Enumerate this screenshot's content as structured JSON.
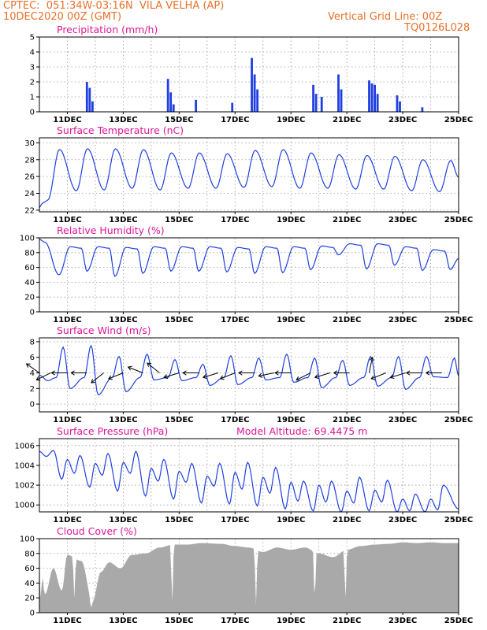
{
  "header": {
    "line1_left": "CPTEC:  051:34W-03:16N  VILA VELHA (AP)",
    "line2_left": "10DEC2020 00Z (GMT)",
    "line1_right": "Vertical Grid Line: 00Z",
    "line2_right": "TQ0126L028"
  },
  "colors": {
    "title": "#e0169a",
    "header": "#e8702a",
    "series": "#1f3fe0",
    "cloud": "#a9a9a9",
    "wind_vector": "#000000"
  },
  "x_ticks": [
    "11DEC",
    "13DEC",
    "15DEC",
    "17DEC",
    "19DEC",
    "21DEC",
    "23DEC",
    "25DEC"
  ],
  "chart_data": [
    {
      "type": "bar",
      "title": "Precipitation (mm/h)",
      "x_range_days": [
        10,
        25
      ],
      "ylim": [
        0,
        5
      ],
      "yticks": [
        "0",
        "1",
        "2",
        "3",
        "4",
        "5"
      ],
      "events": [
        {
          "day": 11.7,
          "value": 2.0
        },
        {
          "day": 11.8,
          "value": 1.6
        },
        {
          "day": 11.9,
          "value": 0.7
        },
        {
          "day": 14.6,
          "value": 2.2
        },
        {
          "day": 14.7,
          "value": 1.3
        },
        {
          "day": 14.8,
          "value": 0.5
        },
        {
          "day": 15.6,
          "value": 0.8
        },
        {
          "day": 16.9,
          "value": 0.6
        },
        {
          "day": 17.6,
          "value": 3.6
        },
        {
          "day": 17.7,
          "value": 2.5
        },
        {
          "day": 17.8,
          "value": 1.5
        },
        {
          "day": 19.8,
          "value": 1.8
        },
        {
          "day": 19.9,
          "value": 1.2
        },
        {
          "day": 20.1,
          "value": 1.0
        },
        {
          "day": 20.7,
          "value": 2.5
        },
        {
          "day": 20.8,
          "value": 1.5
        },
        {
          "day": 21.8,
          "value": 2.1
        },
        {
          "day": 21.9,
          "value": 1.9
        },
        {
          "day": 22.0,
          "value": 1.8
        },
        {
          "day": 22.1,
          "value": 1.2
        },
        {
          "day": 22.8,
          "value": 1.1
        },
        {
          "day": 22.9,
          "value": 0.7
        },
        {
          "day": 23.7,
          "value": 0.3
        }
      ]
    },
    {
      "type": "line",
      "title": "Surface Temperature (nC)",
      "ylim": [
        21.8,
        30.6
      ],
      "yticks": [
        "22",
        "24",
        "26",
        "28",
        "30"
      ],
      "start": {
        "day": 10.0,
        "value": 22.3
      },
      "ramp": [
        {
          "day": 10.1,
          "value": 22.8
        },
        {
          "day": 10.2,
          "value": 23.0
        },
        {
          "day": 10.3,
          "value": 23.2
        }
      ],
      "daily_max": [
        29.2,
        29.3,
        29.3,
        29.2,
        28.8,
        28.8,
        28.7,
        29.1,
        29.2,
        28.8,
        28.6,
        28.5,
        28.4,
        28.0,
        27.9
      ],
      "daily_min": [
        24.3,
        24.4,
        24.6,
        24.4,
        24.6,
        24.6,
        24.7,
        24.8,
        24.6,
        24.6,
        24.5,
        24.5,
        24.3,
        24.2,
        24.2
      ],
      "end": {
        "day": 25.0,
        "value": 25.9
      }
    },
    {
      "type": "line",
      "title": "Relative Humidity (%)",
      "ylim": [
        0,
        100
      ],
      "yticks": [
        "0",
        "20",
        "40",
        "60",
        "80",
        "100"
      ],
      "start": {
        "day": 10.0,
        "value": 98.0
      },
      "daily_min": [
        50,
        55,
        48,
        52,
        55,
        55,
        54,
        52,
        53,
        57,
        77,
        58,
        63,
        56,
        57
      ],
      "daily_max": [
        88,
        88,
        87,
        88,
        88,
        88,
        87,
        88,
        88,
        89,
        92,
        92,
        88,
        84,
        72
      ],
      "end": {
        "day": 25.0,
        "value": 72.0
      }
    },
    {
      "type": "line",
      "title": "Surface Wind (m/s)",
      "ylim": [
        -1,
        8.5
      ],
      "yticks": [
        "0",
        "2",
        "4",
        "6",
        "8"
      ],
      "start": {
        "day": 10.0,
        "value": 3.7
      },
      "daily_min": [
        2.0,
        1.2,
        1.6,
        3.1,
        3.0,
        2.4,
        2.5,
        3.1,
        2.8,
        2.1,
        2.4,
        2.3,
        1.9,
        3.5,
        3.2
      ],
      "daily_max": [
        7.3,
        7.5,
        6.1,
        6.4,
        5.7,
        5.1,
        6.2,
        5.9,
        6.4,
        5.9,
        5.6,
        6.1,
        6.1,
        6.1,
        5.9
      ],
      "end": {
        "day": 25.0,
        "value": 3.6
      },
      "vectors": [
        {
          "day": 10.0,
          "u": -1,
          "v": 0.7
        },
        {
          "day": 10.4,
          "u": -1,
          "v": -0.5
        },
        {
          "day": 11.0,
          "u": -1,
          "v": 0.0
        },
        {
          "day": 11.7,
          "u": -1,
          "v": 0.0
        },
        {
          "day": 12.3,
          "u": -1,
          "v": -0.8
        },
        {
          "day": 13.0,
          "u": -1,
          "v": -0.4
        },
        {
          "day": 13.7,
          "u": -1,
          "v": 0.4
        },
        {
          "day": 14.3,
          "u": -1,
          "v": 0.8
        },
        {
          "day": 15.0,
          "u": -1,
          "v": -0.3
        },
        {
          "day": 15.7,
          "u": -1,
          "v": 0.0
        },
        {
          "day": 16.4,
          "u": -1,
          "v": -0.3
        },
        {
          "day": 17.0,
          "u": -1,
          "v": -0.4
        },
        {
          "day": 17.7,
          "u": -1,
          "v": 0.0
        },
        {
          "day": 18.4,
          "u": -1,
          "v": -0.2
        },
        {
          "day": 19.0,
          "u": -1,
          "v": 0.0
        },
        {
          "day": 19.7,
          "u": -1,
          "v": -0.5
        },
        {
          "day": 20.4,
          "u": -1,
          "v": -0.3
        },
        {
          "day": 21.1,
          "u": -1,
          "v": 0.0
        },
        {
          "day": 21.8,
          "u": 0.2,
          "v": 1.0
        },
        {
          "day": 22.4,
          "u": -1,
          "v": -0.4
        },
        {
          "day": 23.1,
          "u": -1,
          "v": -0.3
        },
        {
          "day": 23.7,
          "u": -1,
          "v": 0.0
        },
        {
          "day": 24.4,
          "u": -1,
          "v": 0.0
        }
      ]
    },
    {
      "type": "line",
      "title": "Surface Pressure (hPa)",
      "annotation": "Model Altitude: 69.4475 m",
      "ylim": [
        999.3,
        1006.7
      ],
      "yticks": [
        "1000",
        "1002",
        "1004",
        "1006"
      ],
      "start": {
        "day": 10.0,
        "value": 1005.4
      },
      "peaks": [
        {
          "day": 10.5,
          "value": 1005.5
        },
        {
          "day": 11.0,
          "value": 1004.6
        },
        {
          "day": 11.45,
          "value": 1005.0
        },
        {
          "day": 12.0,
          "value": 1004.2
        },
        {
          "day": 12.45,
          "value": 1005.2
        },
        {
          "day": 13.0,
          "value": 1004.3
        },
        {
          "day": 13.45,
          "value": 1005.4
        },
        {
          "day": 14.0,
          "value": 1003.7
        },
        {
          "day": 14.45,
          "value": 1004.6
        },
        {
          "day": 15.0,
          "value": 1003.4
        },
        {
          "day": 15.45,
          "value": 1004.2
        },
        {
          "day": 16.0,
          "value": 1002.9
        },
        {
          "day": 16.45,
          "value": 1004.2
        },
        {
          "day": 17.0,
          "value": 1003.3
        },
        {
          "day": 17.45,
          "value": 1004.3
        },
        {
          "day": 18.0,
          "value": 1002.8
        },
        {
          "day": 18.45,
          "value": 1003.8
        },
        {
          "day": 19.0,
          "value": 1002.3
        },
        {
          "day": 19.45,
          "value": 1002.4
        },
        {
          "day": 20.0,
          "value": 1002.0
        },
        {
          "day": 20.45,
          "value": 1002.4
        },
        {
          "day": 21.0,
          "value": 1001.4
        },
        {
          "day": 21.45,
          "value": 1002.8
        },
        {
          "day": 22.0,
          "value": 1001.5
        },
        {
          "day": 22.45,
          "value": 1002.5
        },
        {
          "day": 23.0,
          "value": 1000.6
        },
        {
          "day": 23.45,
          "value": 1001.1
        },
        {
          "day": 24.0,
          "value": 1000.6
        },
        {
          "day": 24.45,
          "value": 1002.0
        }
      ],
      "troughs": [
        {
          "day": 10.25,
          "value": 1004.9
        },
        {
          "day": 10.8,
          "value": 1002.6
        },
        {
          "day": 11.25,
          "value": 1003.2
        },
        {
          "day": 11.8,
          "value": 1001.8
        },
        {
          "day": 12.25,
          "value": 1003.0
        },
        {
          "day": 12.8,
          "value": 1001.4
        },
        {
          "day": 13.25,
          "value": 1003.2
        },
        {
          "day": 13.8,
          "value": 1000.9
        },
        {
          "day": 14.25,
          "value": 1002.4
        },
        {
          "day": 14.8,
          "value": 1000.6
        },
        {
          "day": 15.25,
          "value": 1002.3
        },
        {
          "day": 15.8,
          "value": 1000.2
        },
        {
          "day": 16.25,
          "value": 1001.9
        },
        {
          "day": 16.8,
          "value": 1000.1
        },
        {
          "day": 17.25,
          "value": 1001.6
        },
        {
          "day": 17.8,
          "value": 999.9
        },
        {
          "day": 18.25,
          "value": 1001.2
        },
        {
          "day": 18.8,
          "value": 999.6
        },
        {
          "day": 19.25,
          "value": 1000.4
        },
        {
          "day": 19.8,
          "value": 999.4
        },
        {
          "day": 20.25,
          "value": 1000.3
        },
        {
          "day": 20.8,
          "value": 999.3
        },
        {
          "day": 21.25,
          "value": 1000.2
        },
        {
          "day": 21.8,
          "value": 999.4
        },
        {
          "day": 22.25,
          "value": 1000.3
        },
        {
          "day": 22.8,
          "value": 999.3
        },
        {
          "day": 23.25,
          "value": 999.4
        },
        {
          "day": 23.8,
          "value": 999.3
        },
        {
          "day": 24.25,
          "value": 999.5
        }
      ],
      "end": {
        "day": 25.0,
        "value": 999.6
      }
    },
    {
      "type": "area",
      "title": "Cloud Cover (%)",
      "ylim": [
        0,
        100
      ],
      "yticks": [
        "0",
        "20",
        "40",
        "60",
        "80",
        "100"
      ],
      "profile": [
        {
          "day": 10.0,
          "value": 88
        },
        {
          "day": 10.2,
          "value": 25
        },
        {
          "day": 10.5,
          "value": 60
        },
        {
          "day": 10.8,
          "value": 30
        },
        {
          "day": 11.0,
          "value": 78
        },
        {
          "day": 11.5,
          "value": 70
        },
        {
          "day": 11.9,
          "value": 15
        },
        {
          "day": 12.2,
          "value": 55
        },
        {
          "day": 12.5,
          "value": 68
        },
        {
          "day": 12.9,
          "value": 60
        },
        {
          "day": 13.3,
          "value": 78
        },
        {
          "day": 13.8,
          "value": 80
        },
        {
          "day": 14.3,
          "value": 88
        },
        {
          "day": 14.8,
          "value": 92
        },
        {
          "day": 15.3,
          "value": 92
        },
        {
          "day": 15.8,
          "value": 94
        },
        {
          "day": 16.5,
          "value": 93
        },
        {
          "day": 17.0,
          "value": 90
        },
        {
          "day": 17.5,
          "value": 88
        },
        {
          "day": 18.0,
          "value": 82
        },
        {
          "day": 18.5,
          "value": 88
        },
        {
          "day": 19.0,
          "value": 85
        },
        {
          "day": 19.5,
          "value": 88
        },
        {
          "day": 20.0,
          "value": 80
        },
        {
          "day": 20.5,
          "value": 75
        },
        {
          "day": 21.0,
          "value": 85
        },
        {
          "day": 21.5,
          "value": 90
        },
        {
          "day": 22.0,
          "value": 92
        },
        {
          "day": 22.5,
          "value": 93
        },
        {
          "day": 23.0,
          "value": 95
        },
        {
          "day": 23.5,
          "value": 94
        },
        {
          "day": 24.0,
          "value": 95
        },
        {
          "day": 24.5,
          "value": 94
        },
        {
          "day": 25.0,
          "value": 94
        }
      ],
      "dips": [
        {
          "day": 10.05,
          "value": 8
        },
        {
          "day": 11.25,
          "value": 20
        },
        {
          "day": 11.85,
          "value": 5
        },
        {
          "day": 14.75,
          "value": 3
        },
        {
          "day": 17.75,
          "value": 10
        },
        {
          "day": 19.85,
          "value": 6
        },
        {
          "day": 20.95,
          "value": 10
        }
      ]
    }
  ]
}
